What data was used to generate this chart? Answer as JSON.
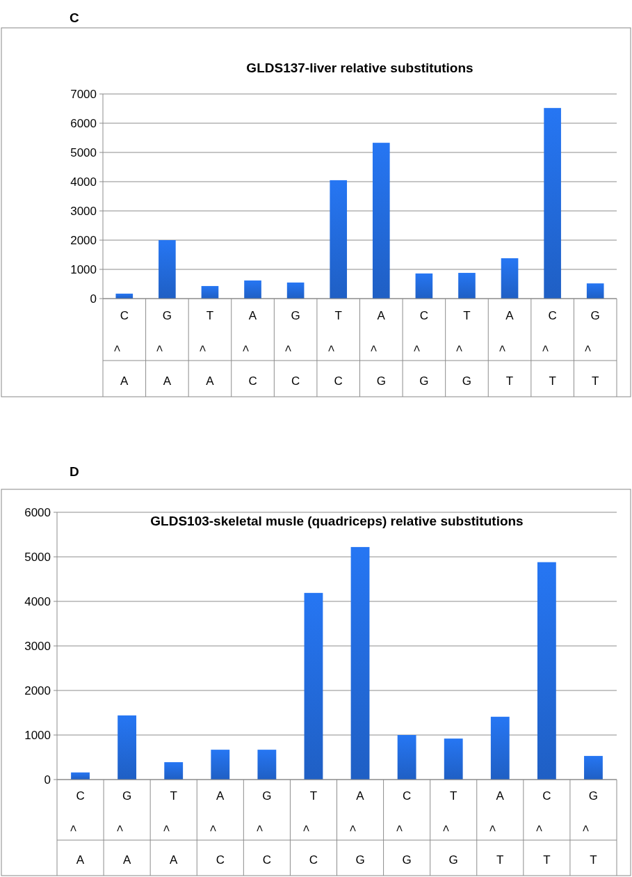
{
  "chart_data": [
    {
      "type": "bar",
      "title": "GLDS137-liver relative substitutions",
      "annotations": [
        "C"
      ],
      "categories": [
        "C>A",
        "G>A",
        "T>A",
        "A>C",
        "G>C",
        "T>C",
        "A>G",
        "C>G",
        "T>G",
        "A>T",
        "C>T",
        "G>T"
      ],
      "values": [
        170,
        2000,
        430,
        620,
        550,
        4050,
        5330,
        860,
        880,
        1380,
        6520,
        520
      ],
      "color": "#1f5fc4",
      "ylim": [
        0,
        7000
      ],
      "yticks": [
        0,
        1000,
        2000,
        3000,
        4000,
        5000,
        6000,
        7000
      ],
      "grid": "y"
    },
    {
      "type": "bar",
      "title": "GLDS103-skeletal musle (quadriceps) relative substitutions",
      "annotations": [
        "D"
      ],
      "categories": [
        "C>A",
        "G>A",
        "T>A",
        "A>C",
        "G>C",
        "T>C",
        "A>G",
        "C>G",
        "T>G",
        "A>T",
        "C>T",
        "G>T"
      ],
      "values": [
        160,
        1440,
        390,
        670,
        670,
        4190,
        5220,
        1000,
        920,
        1410,
        4880,
        530
      ],
      "color": "#1f5fc4",
      "ylim": [
        0,
        6000
      ],
      "yticks": [
        0,
        1000,
        2000,
        3000,
        4000,
        5000,
        6000
      ],
      "grid": "y"
    }
  ]
}
